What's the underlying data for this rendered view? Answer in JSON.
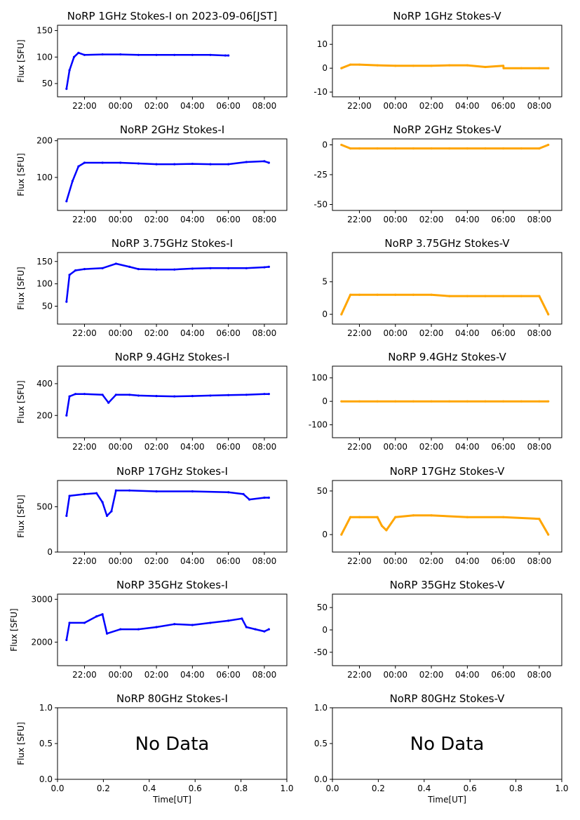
{
  "figure_title": "NoRP 1GHz Stokes-I on 2023-09-06[JST]",
  "colors": {
    "stokes_i": "#0000ff",
    "stokes_v": "#ffa500"
  },
  "chart_data": [
    {
      "type": "scatter",
      "title": "NoRP 1GHz Stokes-I on 2023-09-06[JST]",
      "ylabel": "Flux [SFU]",
      "xlabel": "",
      "xlim": [
        "20:30",
        "09:15"
      ],
      "xticks": [
        "22:00",
        "00:00",
        "02:00",
        "04:00",
        "06:00",
        "08:00"
      ],
      "ylim": [
        25,
        160
      ],
      "yticks": [
        50,
        100,
        150
      ],
      "color": "#0000ff",
      "x": [
        "21:00",
        "21:10",
        "21:25",
        "21:40",
        "22:00",
        "23:00",
        "00:00",
        "01:00",
        "02:00",
        "03:00",
        "04:00",
        "05:00",
        "05:50",
        "06:00"
      ],
      "y": [
        40,
        75,
        100,
        108,
        104,
        105,
        105,
        104,
        104,
        104,
        104,
        104,
        103,
        103
      ]
    },
    {
      "type": "scatter",
      "title": "NoRP 1GHz Stokes-V",
      "ylabel": "",
      "xlabel": "",
      "xlim": [
        "20:30",
        "09:15"
      ],
      "xticks": [
        "22:00",
        "00:00",
        "02:00",
        "04:00",
        "06:00",
        "08:00"
      ],
      "ylim": [
        -12,
        18
      ],
      "yticks": [
        -10,
        0,
        10
      ],
      "color": "#ffa500",
      "x": [
        "21:00",
        "21:30",
        "22:00",
        "23:00",
        "00:00",
        "01:00",
        "02:00",
        "03:00",
        "04:00",
        "05:00",
        "06:00",
        "06:01",
        "07:00",
        "08:00",
        "08:30"
      ],
      "y": [
        0,
        1.5,
        1.5,
        1.2,
        1,
        1,
        1,
        1.2,
        1.2,
        0.5,
        1,
        0,
        0,
        0,
        0
      ]
    },
    {
      "type": "scatter",
      "title": "NoRP 2GHz Stokes-I",
      "ylabel": "Flux [SFU]",
      "xlabel": "",
      "xlim": [
        "20:30",
        "09:15"
      ],
      "xticks": [
        "22:00",
        "00:00",
        "02:00",
        "04:00",
        "06:00",
        "08:00"
      ],
      "ylim": [
        10,
        205
      ],
      "yticks": [
        100,
        200
      ],
      "color": "#0000ff",
      "x": [
        "21:00",
        "21:20",
        "21:40",
        "22:00",
        "23:00",
        "00:00",
        "01:00",
        "02:00",
        "03:00",
        "04:00",
        "05:00",
        "06:00",
        "07:00",
        "08:00",
        "08:15"
      ],
      "y": [
        35,
        90,
        130,
        140,
        140,
        140,
        138,
        136,
        136,
        137,
        136,
        136,
        142,
        144,
        140
      ]
    },
    {
      "type": "scatter",
      "title": "NoRP 2GHz Stokes-V",
      "ylabel": "",
      "xlabel": "",
      "xlim": [
        "20:30",
        "09:15"
      ],
      "xticks": [
        "22:00",
        "00:00",
        "02:00",
        "04:00",
        "06:00",
        "08:00"
      ],
      "ylim": [
        -55,
        5
      ],
      "yticks": [
        -50,
        -25,
        0
      ],
      "color": "#ffa500",
      "x": [
        "21:00",
        "21:30",
        "22:00",
        "23:00",
        "00:00",
        "01:00",
        "02:00",
        "03:00",
        "04:00",
        "05:00",
        "06:00",
        "07:00",
        "08:00",
        "08:30"
      ],
      "y": [
        0,
        -3,
        -3,
        -3,
        -3,
        -3,
        -3,
        -3,
        -3,
        -3,
        -3,
        -3,
        -3,
        0
      ]
    },
    {
      "type": "scatter",
      "title": "NoRP 3.75GHz Stokes-I",
      "ylabel": "Flux [SFU]",
      "xlabel": "",
      "xlim": [
        "20:30",
        "09:15"
      ],
      "xticks": [
        "22:00",
        "00:00",
        "02:00",
        "04:00",
        "06:00",
        "08:00"
      ],
      "ylim": [
        10,
        170
      ],
      "yticks": [
        50,
        100,
        150
      ],
      "color": "#0000ff",
      "x": [
        "21:00",
        "21:10",
        "21:30",
        "22:00",
        "23:00",
        "23:45",
        "00:30",
        "01:00",
        "02:00",
        "03:00",
        "04:00",
        "05:00",
        "06:00",
        "07:00",
        "08:00",
        "08:15"
      ],
      "y": [
        60,
        120,
        130,
        133,
        135,
        145,
        138,
        133,
        132,
        132,
        134,
        135,
        135,
        135,
        137,
        138
      ]
    },
    {
      "type": "scatter",
      "title": "NoRP 3.75GHz Stokes-V",
      "ylabel": "",
      "xlabel": "",
      "xlim": [
        "20:30",
        "09:15"
      ],
      "xticks": [
        "22:00",
        "00:00",
        "02:00",
        "04:00",
        "06:00",
        "08:00"
      ],
      "ylim": [
        -1.5,
        9.5
      ],
      "yticks": [
        0,
        5
      ],
      "color": "#ffa500",
      "x": [
        "21:00",
        "21:30",
        "22:00",
        "23:00",
        "00:00",
        "01:00",
        "02:00",
        "03:00",
        "04:00",
        "05:00",
        "06:00",
        "07:00",
        "08:00",
        "08:30"
      ],
      "y": [
        0,
        3,
        3,
        3,
        3,
        3,
        3,
        2.8,
        2.8,
        2.8,
        2.8,
        2.8,
        2.8,
        0
      ]
    },
    {
      "type": "scatter",
      "title": "NoRP 9.4GHz Stokes-I",
      "ylabel": "Flux [SFU]",
      "xlabel": "",
      "xlim": [
        "20:30",
        "09:15"
      ],
      "xticks": [
        "22:00",
        "00:00",
        "02:00",
        "04:00",
        "06:00",
        "08:00"
      ],
      "ylim": [
        60,
        510
      ],
      "yticks": [
        200,
        400
      ],
      "color": "#0000ff",
      "x": [
        "21:00",
        "21:10",
        "21:30",
        "22:00",
        "23:00",
        "23:20",
        "23:45",
        "00:30",
        "01:00",
        "02:00",
        "03:00",
        "04:00",
        "05:00",
        "06:00",
        "07:00",
        "08:00",
        "08:15"
      ],
      "y": [
        200,
        320,
        335,
        335,
        330,
        280,
        330,
        330,
        325,
        322,
        320,
        322,
        325,
        328,
        330,
        335,
        335
      ]
    },
    {
      "type": "scatter",
      "title": "NoRP 9.4GHz Stokes-V",
      "ylabel": "",
      "xlabel": "",
      "xlim": [
        "20:30",
        "09:15"
      ],
      "xticks": [
        "22:00",
        "00:00",
        "02:00",
        "04:00",
        "06:00",
        "08:00"
      ],
      "ylim": [
        -155,
        150
      ],
      "yticks": [
        -100,
        0,
        100
      ],
      "color": "#ffa500",
      "x": [
        "21:00",
        "22:00",
        "23:00",
        "00:00",
        "01:00",
        "02:00",
        "03:00",
        "04:00",
        "05:00",
        "06:00",
        "07:00",
        "08:00",
        "08:30"
      ],
      "y": [
        0,
        0,
        0,
        0,
        0,
        0,
        0,
        0,
        0,
        0,
        0,
        0,
        0
      ]
    },
    {
      "type": "scatter",
      "title": "NoRP 17GHz Stokes-I",
      "ylabel": "Flux [SFU]",
      "xlabel": "",
      "xlim": [
        "20:30",
        "09:15"
      ],
      "xticks": [
        "22:00",
        "00:00",
        "02:00",
        "04:00",
        "06:00",
        "08:00"
      ],
      "ylim": [
        0,
        790
      ],
      "yticks": [
        0,
        500
      ],
      "color": "#0000ff",
      "x": [
        "21:00",
        "21:10",
        "22:00",
        "22:40",
        "23:00",
        "23:15",
        "23:30",
        "23:45",
        "00:30",
        "02:00",
        "04:00",
        "06:00",
        "06:50",
        "07:10",
        "08:00",
        "08:15"
      ],
      "y": [
        400,
        620,
        640,
        650,
        550,
        400,
        450,
        680,
        680,
        670,
        670,
        660,
        640,
        580,
        600,
        600
      ]
    },
    {
      "type": "scatter",
      "title": "NoRP 17GHz Stokes-V",
      "ylabel": "",
      "xlabel": "",
      "xlim": [
        "20:30",
        "09:15"
      ],
      "xticks": [
        "22:00",
        "00:00",
        "02:00",
        "04:00",
        "06:00",
        "08:00"
      ],
      "ylim": [
        -20,
        62
      ],
      "yticks": [
        0,
        50
      ],
      "color": "#ffa500",
      "x": [
        "21:00",
        "21:30",
        "22:00",
        "23:00",
        "23:15",
        "23:30",
        "00:00",
        "01:00",
        "02:00",
        "04:00",
        "06:00",
        "08:00",
        "08:30"
      ],
      "y": [
        0,
        20,
        20,
        20,
        10,
        5,
        20,
        22,
        22,
        20,
        20,
        18,
        0
      ]
    },
    {
      "type": "scatter",
      "title": "NoRP 35GHz Stokes-I",
      "ylabel": "Flux [SFU]",
      "xlabel": "",
      "xlim": [
        "20:30",
        "09:15"
      ],
      "xticks": [
        "22:00",
        "00:00",
        "02:00",
        "04:00",
        "06:00",
        "08:00"
      ],
      "ylim": [
        1450,
        3120
      ],
      "yticks": [
        2000,
        3000
      ],
      "color": "#0000ff",
      "x": [
        "21:00",
        "21:10",
        "22:00",
        "22:40",
        "23:00",
        "23:15",
        "00:00",
        "01:00",
        "02:00",
        "03:00",
        "04:00",
        "05:00",
        "06:00",
        "06:45",
        "07:00",
        "07:30",
        "08:00",
        "08:15"
      ],
      "y": [
        2050,
        2450,
        2450,
        2600,
        2650,
        2200,
        2300,
        2300,
        2350,
        2420,
        2400,
        2450,
        2500,
        2550,
        2350,
        2300,
        2250,
        2300
      ]
    },
    {
      "type": "scatter",
      "title": "NoRP 35GHz Stokes-V",
      "ylabel": "",
      "xlabel": "",
      "xlim": [
        "20:30",
        "09:15"
      ],
      "xticks": [
        "22:00",
        "00:00",
        "02:00",
        "04:00",
        "06:00",
        "08:00"
      ],
      "ylim": [
        -80,
        80
      ],
      "yticks": [
        -50,
        0,
        50
      ],
      "color": "#ffa500",
      "x": [],
      "y": []
    },
    {
      "type": "scatter",
      "title": "NoRP 80GHz Stokes-I",
      "ylabel": "Flux [SFU]",
      "xlabel": "Time[UT]",
      "xlim": [
        0,
        1
      ],
      "xticks": [
        "0.0",
        "0.2",
        "0.4",
        "0.6",
        "0.8",
        "1.0"
      ],
      "ylim": [
        0,
        1
      ],
      "yticks": [
        "0.0",
        "0.5",
        "1.0"
      ],
      "annotation": "No Data",
      "x": [],
      "y": []
    },
    {
      "type": "scatter",
      "title": "NoRP 80GHz Stokes-V",
      "ylabel": "",
      "xlabel": "Time[UT]",
      "xlim": [
        0,
        1
      ],
      "xticks": [
        "0.0",
        "0.2",
        "0.4",
        "0.6",
        "0.8",
        "1.0"
      ],
      "ylim": [
        0,
        1
      ],
      "yticks": [
        "0.0",
        "0.5",
        "1.0"
      ],
      "annotation": "No Data",
      "x": [],
      "y": []
    }
  ]
}
